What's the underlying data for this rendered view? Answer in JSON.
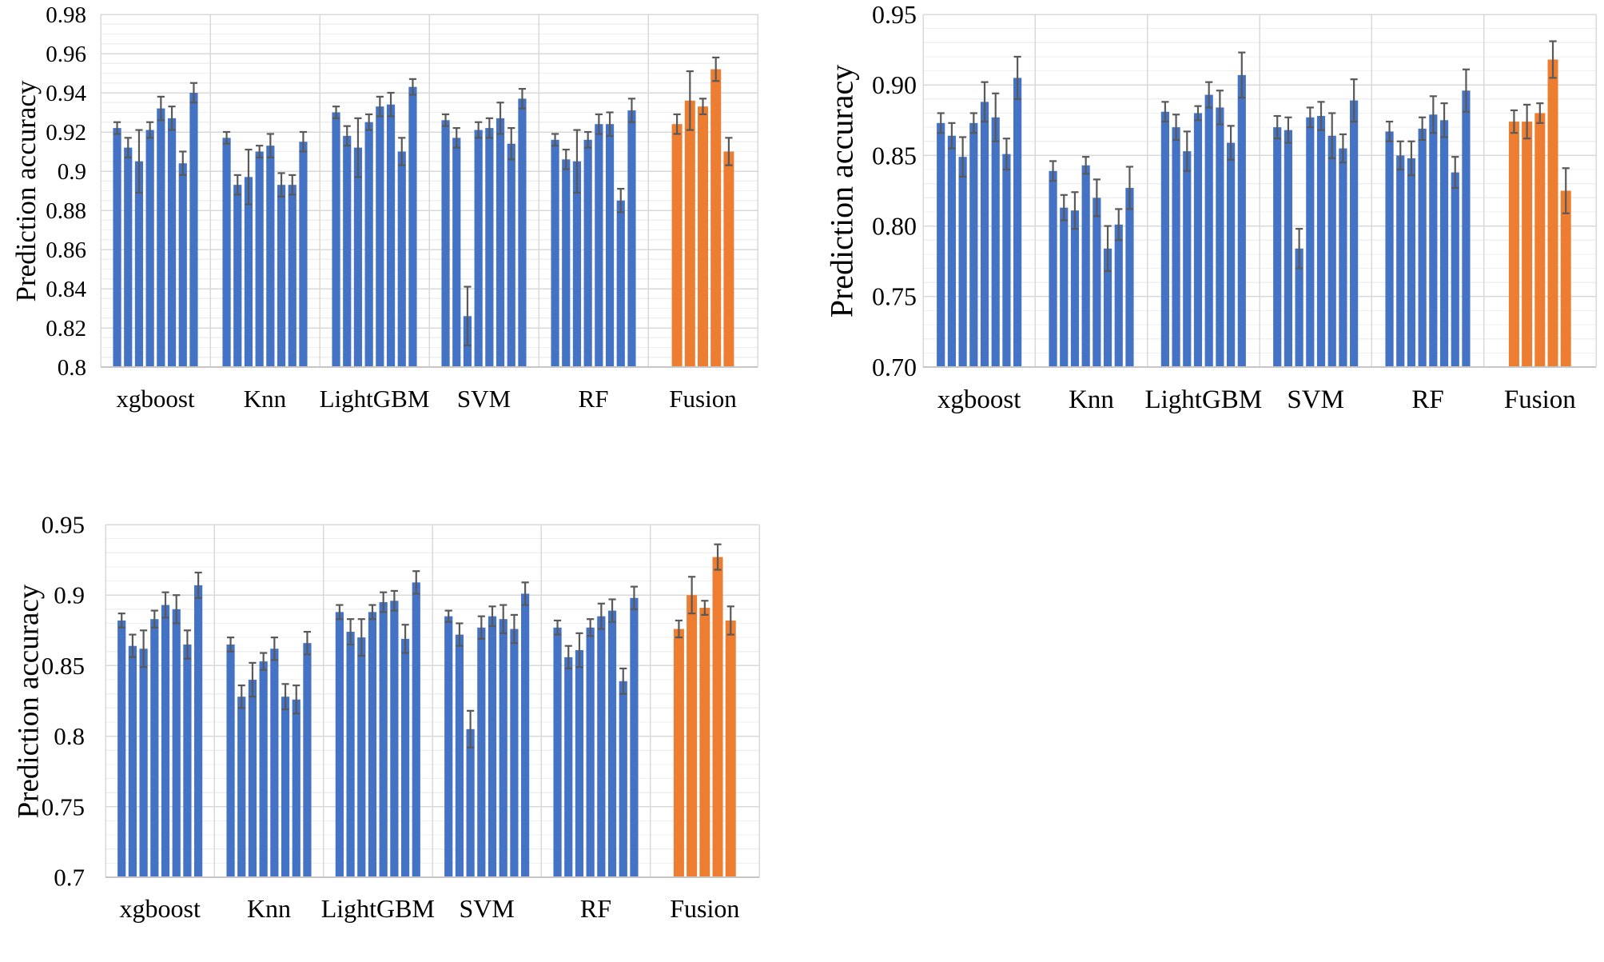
{
  "colors": {
    "bar_blue": "#4472C4",
    "bar_orange": "#ED7D31",
    "error_bar": "#595959",
    "grid_major": "#D9D9D9",
    "grid_minor": "#EFEFEF",
    "axis_line": "#C6C6C6",
    "text": "#000000",
    "background": "#ffffff"
  },
  "chart_data": [
    {
      "id": "top-left",
      "type": "bar",
      "title": "",
      "ylabel": "Prediction accuracy",
      "xlabel": "",
      "ylim": [
        0.8,
        0.98
      ],
      "major_step": 0.02,
      "minor_step": 0.005,
      "grid": true,
      "legend": false,
      "ytick_labels": [
        "0.98",
        "0.96",
        "0.94",
        "0.92",
        "0.9",
        "0.88",
        "0.86",
        "0.84",
        "0.82",
        "0.8"
      ],
      "categories": [
        "xgboost",
        "Knn",
        "LightGBM",
        "SVM",
        "RF",
        "Fusion"
      ],
      "groups": [
        {
          "label": "xgboost",
          "color": "blue",
          "values": [
            0.922,
            0.912,
            0.905,
            0.921,
            0.932,
            0.927,
            0.904,
            0.94
          ],
          "errors": [
            0.003,
            0.005,
            0.016,
            0.004,
            0.006,
            0.006,
            0.006,
            0.005
          ]
        },
        {
          "label": "Knn",
          "color": "blue",
          "values": [
            0.917,
            0.893,
            0.897,
            0.91,
            0.913,
            0.893,
            0.893,
            0.915
          ],
          "errors": [
            0.003,
            0.005,
            0.014,
            0.003,
            0.006,
            0.006,
            0.005,
            0.005
          ]
        },
        {
          "label": "LightGBM",
          "color": "blue",
          "values": [
            0.93,
            0.918,
            0.912,
            0.925,
            0.933,
            0.934,
            0.91,
            0.943
          ],
          "errors": [
            0.003,
            0.005,
            0.015,
            0.004,
            0.005,
            0.006,
            0.007,
            0.004
          ]
        },
        {
          "label": "SVM",
          "color": "blue",
          "values": [
            0.926,
            0.917,
            0.826,
            0.921,
            0.922,
            0.927,
            0.914,
            0.937
          ],
          "errors": [
            0.003,
            0.005,
            0.015,
            0.004,
            0.005,
            0.008,
            0.008,
            0.005
          ]
        },
        {
          "label": "RF",
          "color": "blue",
          "values": [
            0.916,
            0.906,
            0.905,
            0.916,
            0.924,
            0.924,
            0.885,
            0.931
          ],
          "errors": [
            0.003,
            0.005,
            0.016,
            0.004,
            0.005,
            0.006,
            0.006,
            0.006
          ]
        },
        {
          "label": "Fusion",
          "color": "orange",
          "values": [
            0.924,
            0.936,
            0.933,
            0.952,
            0.91
          ],
          "errors": [
            0.005,
            0.015,
            0.004,
            0.006,
            0.007
          ]
        }
      ]
    },
    {
      "id": "top-right",
      "type": "bar",
      "title": "",
      "ylabel": "Prediction accuracy",
      "xlabel": "",
      "ylim": [
        0.7,
        0.95
      ],
      "major_step": 0.05,
      "minor_step": 0.01,
      "grid": true,
      "legend": false,
      "ytick_labels": [
        "0.95",
        "0.90",
        "0.85",
        "0.80",
        "0.75",
        "0.70"
      ],
      "categories": [
        "xgboost",
        "Knn",
        "LightGBM",
        "SVM",
        "RF",
        "Fusion"
      ],
      "groups": [
        {
          "label": "xgboost",
          "color": "blue",
          "values": [
            0.873,
            0.864,
            0.849,
            0.873,
            0.888,
            0.877,
            0.851,
            0.905
          ],
          "errors": [
            0.007,
            0.009,
            0.014,
            0.007,
            0.014,
            0.017,
            0.011,
            0.015
          ]
        },
        {
          "label": "Knn",
          "color": "blue",
          "values": [
            0.839,
            0.813,
            0.811,
            0.843,
            0.82,
            0.784,
            0.801,
            0.827
          ],
          "errors": [
            0.007,
            0.009,
            0.013,
            0.006,
            0.013,
            0.016,
            0.011,
            0.015
          ]
        },
        {
          "label": "LightGBM",
          "color": "blue",
          "values": [
            0.881,
            0.87,
            0.853,
            0.88,
            0.893,
            0.884,
            0.859,
            0.907
          ],
          "errors": [
            0.007,
            0.009,
            0.014,
            0.005,
            0.009,
            0.012,
            0.012,
            0.016
          ]
        },
        {
          "label": "SVM",
          "color": "blue",
          "values": [
            0.87,
            0.868,
            0.784,
            0.877,
            0.878,
            0.864,
            0.855,
            0.889
          ],
          "errors": [
            0.008,
            0.009,
            0.014,
            0.007,
            0.01,
            0.016,
            0.01,
            0.015
          ]
        },
        {
          "label": "RF",
          "color": "blue",
          "values": [
            0.867,
            0.85,
            0.848,
            0.869,
            0.879,
            0.875,
            0.838,
            0.896
          ],
          "errors": [
            0.007,
            0.01,
            0.012,
            0.008,
            0.013,
            0.012,
            0.011,
            0.015
          ]
        },
        {
          "label": "Fusion",
          "color": "orange",
          "values": [
            0.874,
            0.874,
            0.88,
            0.918,
            0.825
          ],
          "errors": [
            0.008,
            0.012,
            0.007,
            0.013,
            0.016
          ]
        }
      ]
    },
    {
      "id": "bottom-left",
      "type": "bar",
      "title": "",
      "ylabel": "Prediction accuracy",
      "xlabel": "",
      "ylim": [
        0.7,
        0.95
      ],
      "major_step": 0.05,
      "minor_step": 0.01,
      "grid": true,
      "legend": false,
      "ytick_labels": [
        "0.95",
        "0.9",
        "0.85",
        "0.8",
        "0.75",
        "0.7"
      ],
      "categories": [
        "xgboost",
        "Knn",
        "LightGBM",
        "SVM",
        "RF",
        "Fusion"
      ],
      "groups": [
        {
          "label": "xgboost",
          "color": "blue",
          "values": [
            0.882,
            0.864,
            0.862,
            0.883,
            0.893,
            0.89,
            0.865,
            0.907
          ],
          "errors": [
            0.005,
            0.008,
            0.013,
            0.006,
            0.009,
            0.01,
            0.01,
            0.009
          ]
        },
        {
          "label": "Knn",
          "color": "blue",
          "values": [
            0.865,
            0.828,
            0.84,
            0.853,
            0.862,
            0.828,
            0.826,
            0.866
          ],
          "errors": [
            0.005,
            0.008,
            0.012,
            0.006,
            0.008,
            0.009,
            0.01,
            0.008
          ]
        },
        {
          "label": "LightGBM",
          "color": "blue",
          "values": [
            0.888,
            0.874,
            0.87,
            0.888,
            0.895,
            0.896,
            0.869,
            0.909
          ],
          "errors": [
            0.005,
            0.009,
            0.013,
            0.005,
            0.007,
            0.007,
            0.01,
            0.008
          ]
        },
        {
          "label": "SVM",
          "color": "blue",
          "values": [
            0.885,
            0.872,
            0.805,
            0.877,
            0.885,
            0.883,
            0.876,
            0.901
          ],
          "errors": [
            0.004,
            0.008,
            0.013,
            0.008,
            0.007,
            0.01,
            0.01,
            0.008
          ]
        },
        {
          "label": "RF",
          "color": "blue",
          "values": [
            0.877,
            0.856,
            0.861,
            0.877,
            0.885,
            0.889,
            0.839,
            0.898
          ],
          "errors": [
            0.005,
            0.008,
            0.012,
            0.006,
            0.009,
            0.008,
            0.009,
            0.008
          ]
        },
        {
          "label": "Fusion",
          "color": "orange",
          "values": [
            0.876,
            0.9,
            0.891,
            0.927,
            0.882
          ],
          "errors": [
            0.006,
            0.013,
            0.005,
            0.009,
            0.01
          ]
        }
      ]
    }
  ]
}
